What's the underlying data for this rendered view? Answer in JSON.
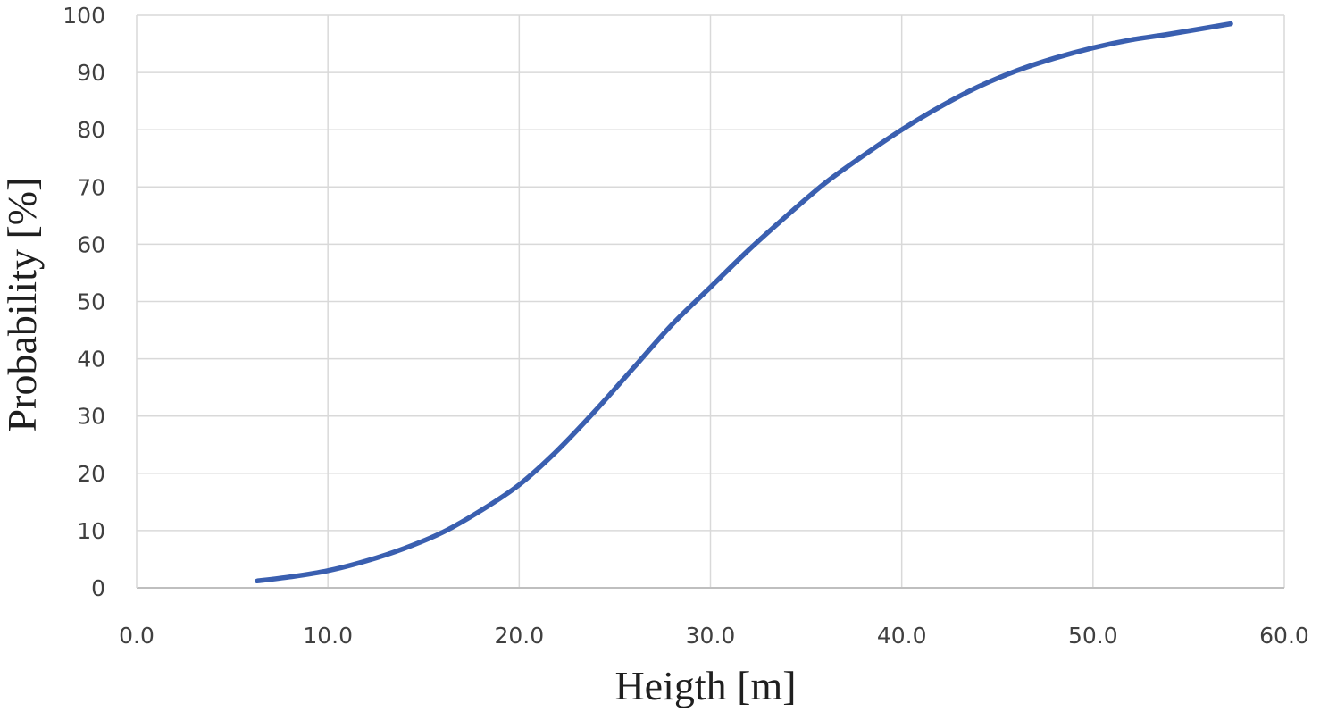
{
  "chart_data": {
    "type": "line",
    "title": "",
    "xlabel": "Heigth [m]",
    "ylabel": "Probability [%]",
    "xlim": [
      0,
      60
    ],
    "ylim": [
      0,
      100
    ],
    "x_ticks": [
      "0.0",
      "10.0",
      "20.0",
      "30.0",
      "40.0",
      "50.0",
      "60.0"
    ],
    "y_ticks": [
      "0",
      "10",
      "20",
      "30",
      "40",
      "50",
      "60",
      "70",
      "80",
      "90",
      "100"
    ],
    "grid": true,
    "legend": "none",
    "series": [
      {
        "color": "#3a5fb0",
        "x": [
          6.3,
          8,
          10,
          12,
          14,
          16,
          18,
          20,
          22,
          24,
          26,
          28,
          30,
          32,
          34,
          36,
          38,
          40,
          42,
          44,
          46,
          48,
          50,
          52,
          54,
          57.2
        ],
        "y": [
          1.2,
          1.9,
          3.0,
          4.7,
          6.9,
          9.7,
          13.5,
          18.0,
          24.0,
          31.0,
          38.5,
          46.0,
          52.5,
          59.0,
          65.0,
          70.7,
          75.5,
          80.0,
          84.0,
          87.5,
          90.3,
          92.5,
          94.3,
          95.7,
          96.7,
          98.5
        ]
      }
    ]
  }
}
